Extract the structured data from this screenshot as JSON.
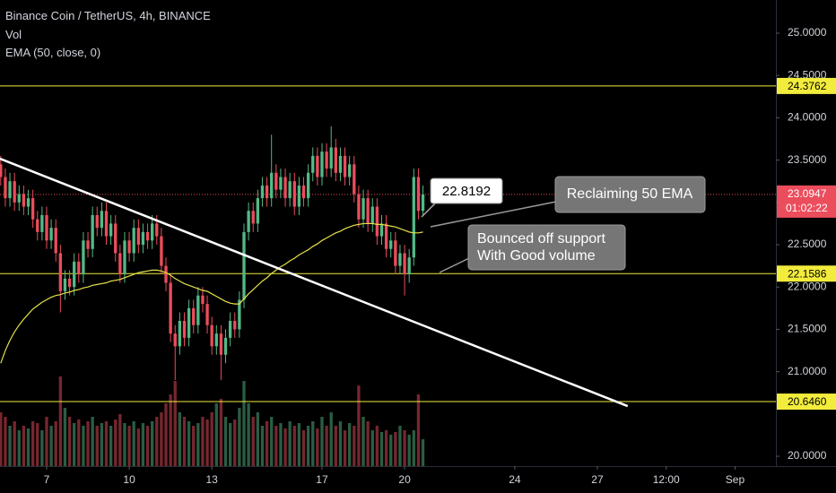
{
  "chart_data": {
    "type": "candlestick",
    "title": "Binance Coin / TetherUS, 4h, BINANCE",
    "volume_label": "Vol",
    "ema_label": "EMA (50, close, 0)",
    "up_color": "#53b987",
    "down_color": "#eb4d5c",
    "ema_color": "#e6e04a",
    "level_color": "#f2ec3c",
    "trendline_color": "#ffffff",
    "open": [
      23.45,
      23.3,
      23.05,
      23.25,
      23.0,
      23.1,
      22.95,
      23.05,
      22.8,
      22.65,
      22.85,
      22.55,
      22.7,
      22.4,
      21.95,
      22.1,
      22.0,
      22.3,
      22.15,
      22.55,
      22.45,
      22.85,
      22.7,
      22.9,
      22.6,
      22.75,
      22.4,
      22.15,
      22.55,
      22.4,
      22.7,
      22.5,
      22.65,
      22.55,
      22.75,
      22.6,
      22.25,
      22.05,
      21.45,
      21.3,
      21.6,
      21.4,
      21.75,
      21.55,
      21.9,
      21.8,
      21.55,
      21.3,
      21.45,
      21.2,
      21.4,
      21.6,
      21.5,
      21.85,
      22.65,
      22.9,
      22.75,
      23.05,
      23.2,
      23.05,
      23.35,
      23.15,
      23.3,
      23.05,
      23.25,
      22.95,
      23.2,
      23.05,
      23.35,
      23.55,
      23.3,
      23.6,
      23.4,
      23.65,
      23.35,
      23.55,
      23.3,
      23.45,
      23.1,
      22.8,
      23.05,
      22.75,
      22.95,
      22.6,
      22.75,
      22.45,
      22.55,
      22.25,
      22.4,
      22.15,
      22.35,
      23.3,
      22.9
    ],
    "high": [
      23.55,
      23.4,
      23.35,
      23.35,
      23.2,
      23.2,
      23.15,
      23.15,
      22.9,
      22.95,
      22.95,
      22.8,
      22.8,
      22.5,
      22.2,
      22.2,
      22.4,
      22.4,
      22.65,
      22.65,
      22.95,
      22.95,
      23.0,
      23.0,
      22.85,
      22.85,
      22.5,
      22.65,
      22.65,
      22.8,
      22.8,
      22.75,
      22.75,
      22.85,
      22.85,
      22.7,
      22.35,
      22.15,
      21.55,
      21.7,
      21.7,
      21.85,
      21.85,
      22.0,
      22.0,
      21.9,
      21.65,
      21.55,
      21.55,
      21.5,
      21.7,
      21.7,
      21.95,
      22.75,
      23.0,
      23.0,
      23.15,
      23.3,
      23.3,
      23.8,
      23.45,
      23.4,
      23.4,
      23.35,
      23.35,
      23.3,
      23.3,
      23.45,
      23.65,
      23.65,
      23.7,
      23.7,
      23.9,
      23.75,
      23.65,
      23.65,
      23.55,
      23.55,
      23.2,
      23.15,
      23.15,
      23.05,
      23.05,
      22.85,
      22.85,
      22.65,
      22.65,
      22.5,
      22.5,
      22.45,
      23.4,
      23.4,
      23.2
    ],
    "low": [
      23.2,
      22.95,
      22.95,
      22.9,
      22.9,
      22.85,
      22.85,
      22.7,
      22.55,
      22.55,
      22.45,
      22.45,
      22.3,
      21.7,
      21.85,
      21.9,
      21.9,
      22.05,
      22.05,
      22.35,
      22.35,
      22.6,
      22.6,
      22.5,
      22.5,
      22.3,
      22.05,
      22.05,
      22.3,
      22.3,
      22.4,
      22.4,
      22.45,
      22.45,
      22.5,
      22.15,
      21.95,
      21.35,
      20.9,
      21.2,
      21.3,
      21.3,
      21.45,
      21.45,
      21.7,
      21.45,
      21.2,
      21.2,
      20.9,
      21.1,
      21.3,
      21.4,
      21.4,
      21.75,
      22.55,
      22.65,
      22.65,
      22.95,
      22.95,
      22.95,
      23.05,
      23.05,
      22.95,
      22.95,
      22.85,
      22.85,
      22.95,
      22.95,
      23.25,
      23.2,
      23.2,
      23.3,
      23.3,
      23.25,
      23.25,
      23.2,
      23.2,
      23.0,
      22.7,
      22.7,
      22.65,
      22.65,
      22.5,
      22.5,
      22.35,
      22.35,
      22.15,
      22.15,
      21.9,
      22.05,
      22.25,
      22.8,
      22.85
    ],
    "close": [
      23.3,
      23.05,
      23.25,
      23.0,
      23.1,
      22.95,
      23.05,
      22.8,
      22.65,
      22.85,
      22.55,
      22.7,
      22.4,
      21.95,
      22.1,
      22.0,
      22.3,
      22.15,
      22.55,
      22.45,
      22.85,
      22.7,
      22.9,
      22.6,
      22.75,
      22.4,
      22.15,
      22.55,
      22.4,
      22.7,
      22.5,
      22.65,
      22.55,
      22.75,
      22.6,
      22.25,
      22.05,
      21.45,
      21.3,
      21.6,
      21.4,
      21.75,
      21.55,
      21.9,
      21.8,
      21.55,
      21.3,
      21.45,
      21.2,
      21.4,
      21.6,
      21.5,
      21.85,
      22.65,
      22.9,
      22.75,
      23.05,
      23.2,
      23.05,
      23.35,
      23.15,
      23.3,
      23.05,
      23.25,
      22.95,
      23.2,
      23.05,
      23.35,
      23.55,
      23.3,
      23.6,
      23.4,
      23.65,
      23.35,
      23.55,
      23.3,
      23.45,
      23.1,
      22.8,
      23.05,
      22.75,
      22.95,
      22.6,
      22.75,
      22.45,
      22.55,
      22.25,
      22.4,
      22.15,
      22.35,
      23.3,
      22.9,
      23.0947
    ],
    "volume": [
      60,
      55,
      45,
      50,
      40,
      45,
      42,
      50,
      48,
      40,
      55,
      45,
      50,
      100,
      65,
      55,
      48,
      52,
      45,
      50,
      55,
      45,
      48,
      50,
      45,
      52,
      58,
      48,
      45,
      50,
      42,
      48,
      45,
      50,
      55,
      60,
      70,
      80,
      95,
      60,
      55,
      50,
      45,
      48,
      55,
      52,
      60,
      70,
      75,
      55,
      48,
      52,
      65,
      95,
      70,
      55,
      60,
      45,
      50,
      55,
      45,
      48,
      42,
      50,
      45,
      48,
      40,
      45,
      50,
      42,
      55,
      45,
      60,
      45,
      50,
      40,
      48,
      45,
      90,
      55,
      50,
      40,
      45,
      38,
      40,
      35,
      38,
      45,
      40,
      35,
      40,
      80,
      30
    ],
    "ema": [
      21.1,
      21.25,
      21.37,
      21.47,
      21.55,
      21.62,
      21.68,
      21.74,
      21.78,
      21.82,
      21.85,
      21.88,
      21.9,
      21.91,
      21.93,
      21.94,
      21.96,
      21.97,
      21.99,
      22.0,
      22.02,
      22.03,
      22.04,
      22.05,
      22.07,
      22.08,
      22.09,
      22.11,
      22.13,
      22.15,
      22.17,
      22.18,
      22.19,
      22.2,
      22.2,
      22.19,
      22.17,
      22.14,
      22.1,
      22.07,
      22.04,
      22.02,
      22.0,
      21.98,
      21.96,
      21.95,
      21.92,
      21.89,
      21.86,
      21.83,
      21.81,
      21.8,
      21.8,
      21.86,
      21.92,
      21.97,
      22.02,
      22.07,
      22.11,
      22.16,
      22.2,
      22.24,
      22.27,
      22.31,
      22.34,
      22.38,
      22.41,
      22.44,
      22.48,
      22.51,
      22.55,
      22.58,
      22.61,
      22.64,
      22.66,
      22.69,
      22.71,
      22.73,
      22.74,
      22.75,
      22.75,
      22.75,
      22.74,
      22.74,
      22.73,
      22.72,
      22.71,
      22.69,
      22.67,
      22.65,
      22.64,
      22.64,
      22.65
    ],
    "xlim": [
      -0.16,
      168.9
    ],
    "xticks": [
      {
        "value": 10,
        "label": "7"
      },
      {
        "value": 28,
        "label": "10"
      },
      {
        "value": 46,
        "label": "13"
      },
      {
        "value": 70,
        "label": "17"
      },
      {
        "value": 88,
        "label": "20"
      },
      {
        "value": 112,
        "label": "24"
      },
      {
        "value": 130,
        "label": "27"
      },
      {
        "value": 145,
        "label": "12:00"
      },
      {
        "value": 160,
        "label": "Sep"
      }
    ],
    "ylim": [
      19.884,
      25.392
    ],
    "yticks": [
      {
        "value": 20,
        "label": "20.0000"
      },
      {
        "value": 21,
        "label": "21.0000"
      },
      {
        "value": 21.5,
        "label": "21.5000"
      },
      {
        "value": 22,
        "label": "22.0000"
      },
      {
        "value": 22.5,
        "label": "22.5000"
      },
      {
        "value": 23,
        "label": "23.0000"
      },
      {
        "value": 23.5,
        "label": "23.5000"
      },
      {
        "value": 24,
        "label": "24.0000"
      },
      {
        "value": 24.5,
        "label": "24.5000"
      },
      {
        "value": 25,
        "label": "25.0000"
      }
    ],
    "levels": [
      24.3762,
      22.1586,
      {
        "value": 20.646,
        "label": "20.6460"
      }
    ],
    "last_price": 23.0947,
    "countdown": "01:02:22",
    "trendline": {
      "x": [
        -0.16,
        136.6
      ],
      "y": [
        23.517,
        20.593
      ]
    },
    "annotations": {
      "callout_value": 22.8192,
      "ema_note": "Reclaiming 50 EMA",
      "support_note": [
        "Bounced off support",
        "With Good volume"
      ]
    }
  }
}
